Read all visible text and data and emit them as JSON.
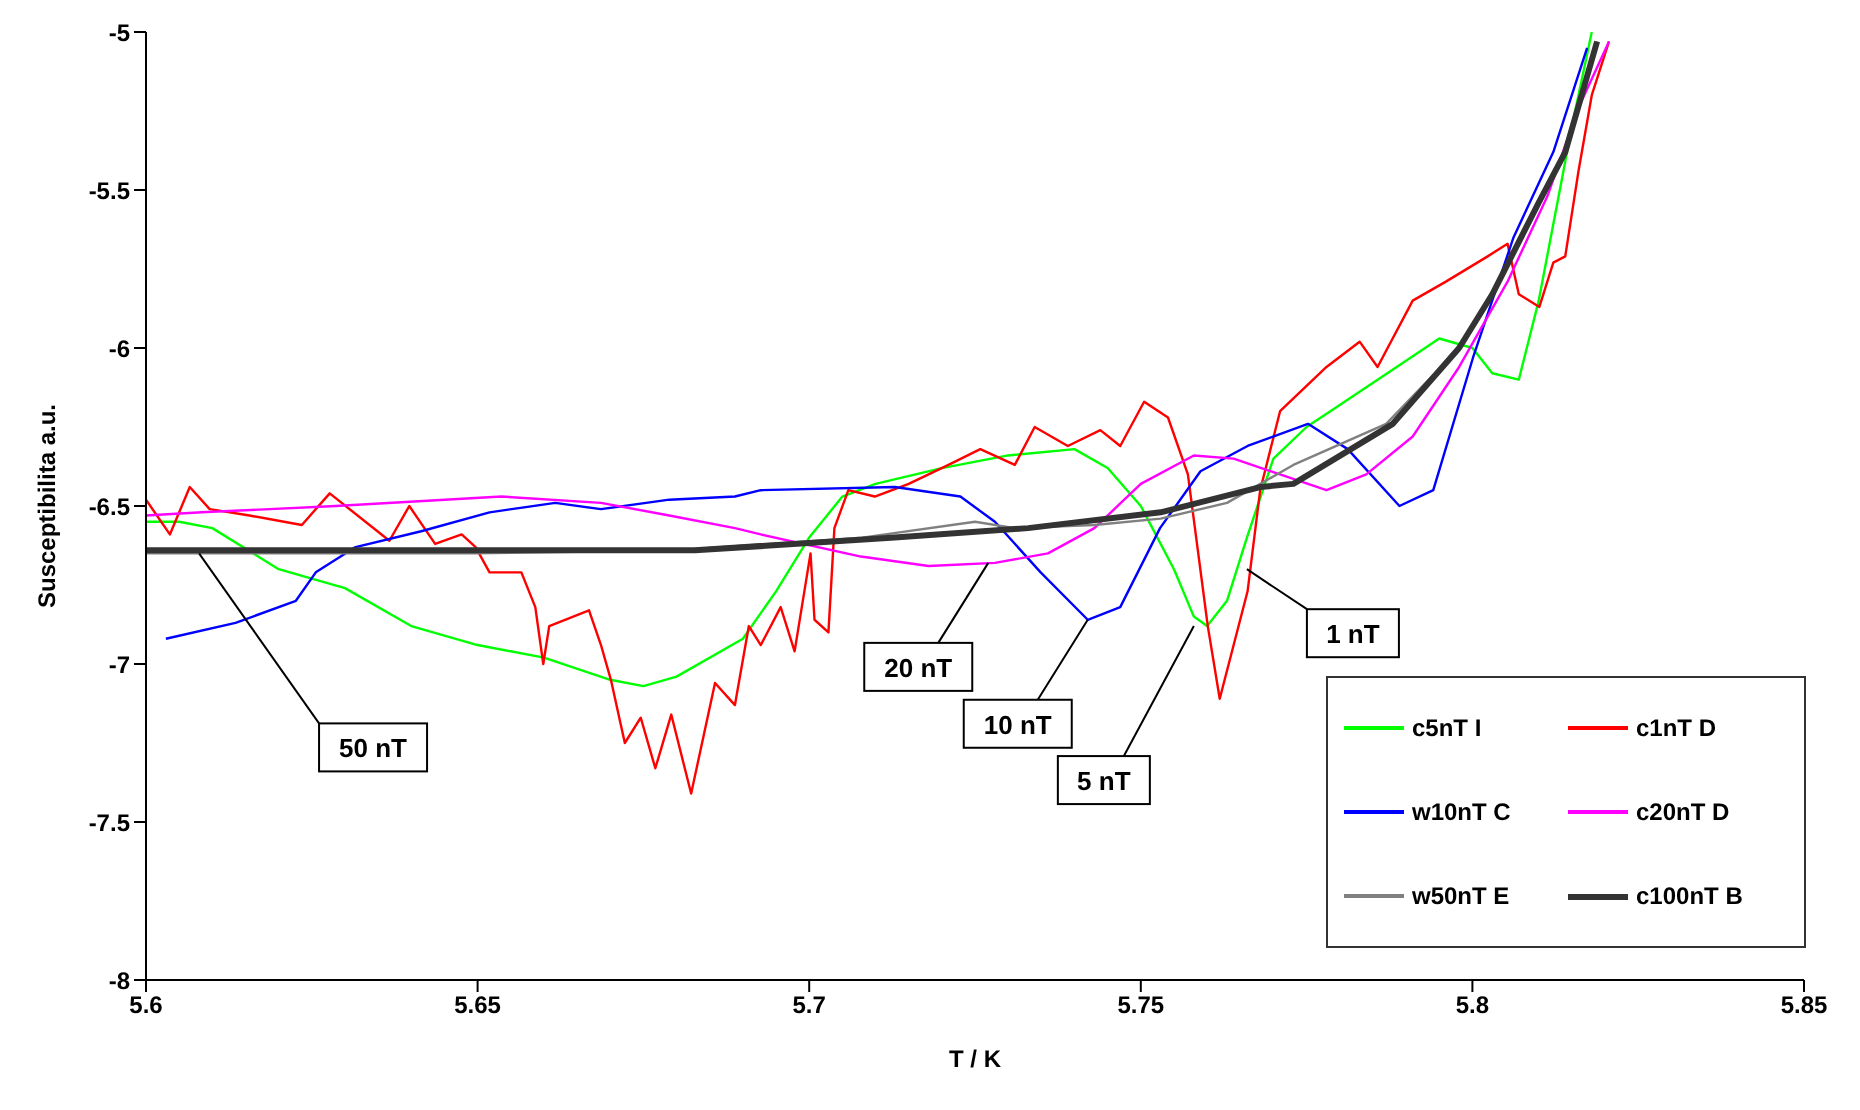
{
  "chart_data": {
    "type": "line",
    "xlabel": "T / K",
    "ylabel": "Susceptibilita a.u.",
    "xlim": [
      5.6,
      5.85
    ],
    "xticks": [
      5.6,
      5.65,
      5.7,
      5.75,
      5.8,
      5.85
    ],
    "ylim": [
      -8,
      -5
    ],
    "yticks": [
      -8,
      -7.5,
      -7,
      -6.5,
      -6,
      -5.5,
      -5
    ],
    "grid": false,
    "legend": "bottom right",
    "marker": "none",
    "line_style": "solid",
    "series": [
      {
        "name": "c5nT I",
        "color": "#00ff00",
        "x": [
          5.6,
          5.605,
          5.61,
          5.62,
          5.63,
          5.64,
          5.65,
          5.66,
          5.67,
          5.675,
          5.68,
          5.69,
          5.695,
          5.7,
          5.705,
          5.71,
          5.72,
          5.73,
          5.74,
          5.745,
          5.75,
          5.755,
          5.758,
          5.76,
          5.763,
          5.766,
          5.77,
          5.775,
          5.78,
          5.79,
          5.795,
          5.8,
          5.803,
          5.807,
          5.81,
          5.815,
          5.818
        ],
        "values": [
          -6.55,
          -6.55,
          -6.57,
          -6.7,
          -6.76,
          -6.88,
          -6.94,
          -6.98,
          -7.05,
          -7.07,
          -7.04,
          -6.92,
          -6.77,
          -6.6,
          -6.47,
          -6.43,
          -6.38,
          -6.34,
          -6.32,
          -6.38,
          -6.5,
          -6.7,
          -6.85,
          -6.88,
          -6.8,
          -6.6,
          -6.35,
          -6.25,
          -6.18,
          -6.04,
          -5.97,
          -6.0,
          -6.08,
          -6.1,
          -5.85,
          -5.3,
          -5.0
        ]
      },
      {
        "name": "c1nT D",
        "color": "#ff0000",
        "x": [
          5.6,
          5.6036,
          5.6066,
          5.6096,
          5.6156,
          5.6235,
          5.6277,
          5.6367,
          5.6397,
          5.6436,
          5.6476,
          5.6497,
          5.6518,
          5.6566,
          5.6587,
          5.6599,
          5.6608,
          5.6668,
          5.6686,
          5.6701,
          5.6722,
          5.6746,
          5.6768,
          5.6792,
          5.6822,
          5.6858,
          5.6888,
          5.6909,
          5.6927,
          5.6957,
          5.6978,
          5.7002,
          5.7008,
          5.7029,
          5.7038,
          5.7059,
          5.7099,
          5.715,
          5.721,
          5.7258,
          5.731,
          5.734,
          5.739,
          5.7439,
          5.7469,
          5.7505,
          5.7541,
          5.7571,
          5.7601,
          5.7619,
          5.764,
          5.7661,
          5.768,
          5.771,
          5.778,
          5.783,
          5.7857,
          5.791,
          5.796,
          5.8023,
          5.8053,
          5.807,
          5.8101,
          5.8122,
          5.814,
          5.816,
          5.818,
          5.8206
        ],
        "values": [
          -6.48,
          -6.59,
          -6.44,
          -6.51,
          -6.53,
          -6.56,
          -6.46,
          -6.61,
          -6.5,
          -6.62,
          -6.59,
          -6.63,
          -6.71,
          -6.71,
          -6.82,
          -7.0,
          -6.88,
          -6.83,
          -6.94,
          -7.05,
          -7.25,
          -7.17,
          -7.33,
          -7.16,
          -7.41,
          -7.06,
          -7.13,
          -6.88,
          -6.94,
          -6.82,
          -6.96,
          -6.65,
          -6.86,
          -6.9,
          -6.57,
          -6.45,
          -6.47,
          -6.43,
          -6.37,
          -6.32,
          -6.37,
          -6.25,
          -6.31,
          -6.26,
          -6.31,
          -6.17,
          -6.22,
          -6.4,
          -6.88,
          -7.11,
          -6.94,
          -6.77,
          -6.45,
          -6.2,
          -6.06,
          -5.98,
          -6.06,
          -5.85,
          -5.79,
          -5.71,
          -5.67,
          -5.83,
          -5.87,
          -5.73,
          -5.71,
          -5.44,
          -5.2,
          -5.03
        ]
      },
      {
        "name": "w10nT C",
        "color": "#0000ff",
        "x": [
          5.603,
          5.6135,
          5.6226,
          5.6256,
          5.6316,
          5.6415,
          5.6518,
          5.6617,
          5.6686,
          5.6789,
          5.6888,
          5.6927,
          5.7129,
          5.7228,
          5.728,
          5.7349,
          5.742,
          5.7469,
          5.7529,
          5.759,
          5.7661,
          5.7752,
          5.7812,
          5.789,
          5.7941,
          5.8001,
          5.8062,
          5.8122,
          5.8173
        ],
        "values": [
          -6.92,
          -6.87,
          -6.8,
          -6.71,
          -6.63,
          -6.58,
          -6.52,
          -6.49,
          -6.51,
          -6.48,
          -6.47,
          -6.45,
          -6.44,
          -6.47,
          -6.55,
          -6.71,
          -6.86,
          -6.82,
          -6.57,
          -6.39,
          -6.31,
          -6.24,
          -6.32,
          -6.5,
          -6.45,
          -6.03,
          -5.65,
          -5.38,
          -5.05
        ]
      },
      {
        "name": "c20nT D",
        "color": "#ff00ff",
        "x": [
          5.6,
          5.6084,
          5.6286,
          5.6536,
          5.6686,
          5.6789,
          5.6888,
          5.6927,
          5.7078,
          5.718,
          5.728,
          5.736,
          5.743,
          5.75,
          5.758,
          5.764,
          5.778,
          5.784,
          5.791,
          5.798,
          5.8053,
          5.8113,
          5.816,
          5.8206
        ],
        "values": [
          -6.53,
          -6.52,
          -6.5,
          -6.47,
          -6.49,
          -6.53,
          -6.57,
          -6.59,
          -6.66,
          -6.69,
          -6.68,
          -6.65,
          -6.57,
          -6.43,
          -6.34,
          -6.35,
          -6.45,
          -6.4,
          -6.28,
          -6.06,
          -5.79,
          -5.52,
          -5.24,
          -5.03
        ]
      },
      {
        "name": "w50nT E",
        "color": "#808080",
        "x": [
          5.6,
          5.65,
          5.68,
          5.708,
          5.725,
          5.731,
          5.743,
          5.753,
          5.763,
          5.773,
          5.787,
          5.798,
          5.803,
          5.81,
          5.814,
          5.8188
        ],
        "values": [
          -6.65,
          -6.65,
          -6.64,
          -6.6,
          -6.55,
          -6.57,
          -6.56,
          -6.54,
          -6.49,
          -6.37,
          -6.24,
          -6.0,
          -5.83,
          -5.54,
          -5.38,
          -5.03
        ]
      },
      {
        "name": "c100nT B",
        "color": "#333333",
        "x": [
          5.6,
          5.65,
          5.6828,
          5.7129,
          5.733,
          5.753,
          5.768,
          5.773,
          5.788,
          5.798,
          5.803,
          5.81,
          5.814,
          5.8188
        ],
        "values": [
          -6.64,
          -6.64,
          -6.64,
          -6.6,
          -6.57,
          -6.52,
          -6.44,
          -6.43,
          -6.24,
          -6.0,
          -5.83,
          -5.54,
          -5.38,
          -5.03
        ]
      }
    ],
    "annotations": [
      {
        "text": "50 nT",
        "x": 5.608,
        "y": -6.65
      },
      {
        "text": "20 nT",
        "x": 5.727,
        "y": -6.68
      },
      {
        "text": "10 nT",
        "x": 5.742,
        "y": -6.86
      },
      {
        "text": "5 nT",
        "x": 5.758,
        "y": -6.88
      },
      {
        "text": "1 nT",
        "x": 5.766,
        "y": -6.7
      }
    ]
  }
}
